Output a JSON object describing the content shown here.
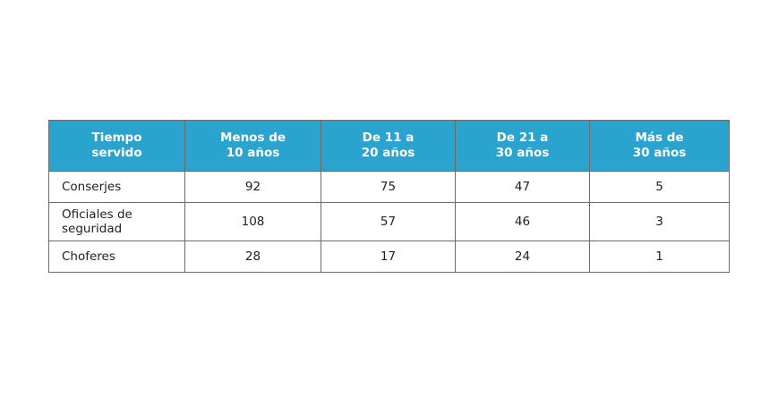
{
  "table": {
    "headers": [
      [
        "Tiempo",
        "servido"
      ],
      [
        "Menos de",
        "10 años"
      ],
      [
        "De 11 a",
        "20 años"
      ],
      [
        "De 21 a",
        "30 años"
      ],
      [
        "Más de",
        "30 años"
      ]
    ],
    "rows": [
      {
        "label": "Conserjes",
        "values": [
          "92",
          "75",
          "47",
          "5"
        ]
      },
      {
        "label": "Oficiales de seguridad",
        "values": [
          "108",
          "57",
          "46",
          "3"
        ]
      },
      {
        "label": "Choferes",
        "values": [
          "28",
          "17",
          "24",
          "1"
        ]
      }
    ],
    "colors": {
      "header_bg": "#2aa3cf",
      "header_text": "#ffffff",
      "border": "#6b6b6b"
    }
  }
}
